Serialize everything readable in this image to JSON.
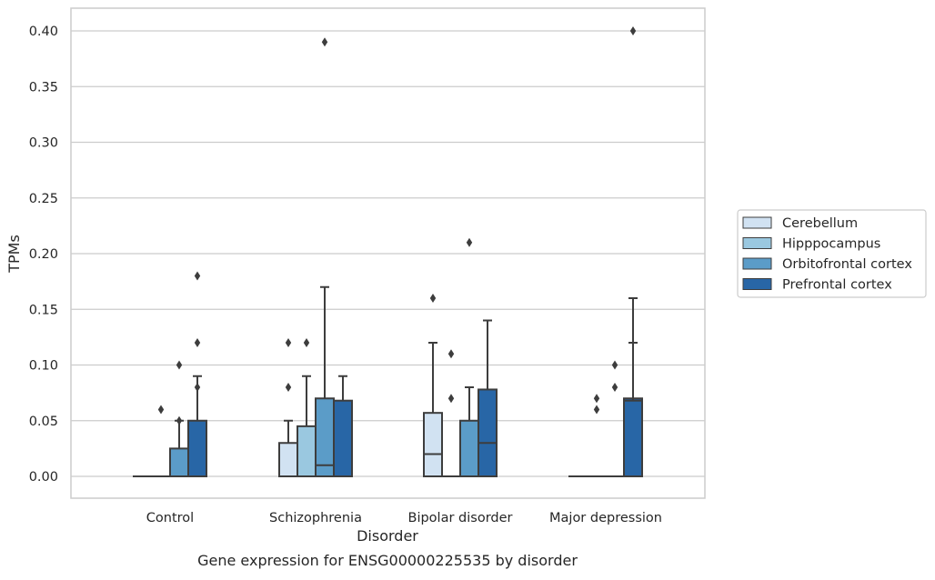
{
  "chart_data": {
    "type": "boxplot",
    "title": "Gene expression for ENSG00000225535 by disorder",
    "xlabel": "Disorder",
    "ylabel": "TPMs",
    "ylim": [
      -0.019,
      0.42
    ],
    "yticks": [
      0.0,
      0.05,
      0.1,
      0.15,
      0.2,
      0.25,
      0.3,
      0.35,
      0.4
    ],
    "ytick_labels": [
      "0.00",
      "0.05",
      "0.10",
      "0.15",
      "0.20",
      "0.25",
      "0.30",
      "0.35",
      "0.40"
    ],
    "grid": "horizontal",
    "legend_position": "right",
    "categories": [
      "Control",
      "Schizophrenia",
      "Bipolar disorder",
      "Major depression"
    ],
    "series": [
      {
        "name": "Cerebellum",
        "color": "#d1e2f2",
        "boxes": [
          {
            "q1": 0.0,
            "median": 0.0,
            "q3": 0.0,
            "whislo": 0.0,
            "whishi": 0.0,
            "fliers": []
          },
          {
            "q1": 0.0,
            "median": 0.0,
            "q3": 0.03,
            "whislo": 0.0,
            "whishi": 0.05,
            "fliers": [
              0.08,
              0.12
            ]
          },
          {
            "q1": 0.0,
            "median": 0.02,
            "q3": 0.057,
            "whislo": 0.0,
            "whishi": 0.12,
            "fliers": [
              0.16
            ]
          },
          {
            "q1": 0.0,
            "median": 0.0,
            "q3": 0.0,
            "whislo": 0.0,
            "whishi": 0.0,
            "fliers": []
          }
        ]
      },
      {
        "name": "Hipppocampus",
        "color": "#9ac8e0",
        "boxes": [
          {
            "q1": 0.0,
            "median": 0.0,
            "q3": 0.0,
            "whislo": 0.0,
            "whishi": 0.0,
            "fliers": [
              0.06
            ]
          },
          {
            "q1": 0.0,
            "median": 0.0,
            "q3": 0.045,
            "whislo": 0.0,
            "whishi": 0.09,
            "fliers": [
              0.12
            ]
          },
          {
            "q1": 0.0,
            "median": 0.0,
            "q3": 0.0,
            "whislo": 0.0,
            "whishi": 0.0,
            "fliers": [
              0.07,
              0.11
            ]
          },
          {
            "q1": 0.0,
            "median": 0.0,
            "q3": 0.0,
            "whislo": 0.0,
            "whishi": 0.0,
            "fliers": [
              0.06,
              0.07
            ]
          }
        ]
      },
      {
        "name": "Orbitofrontal cortex",
        "color": "#5b9cc8",
        "boxes": [
          {
            "q1": 0.0,
            "median": 0.0,
            "q3": 0.025,
            "whislo": 0.0,
            "whishi": 0.05,
            "fliers": [
              0.05,
              0.1
            ]
          },
          {
            "q1": 0.0,
            "median": 0.01,
            "q3": 0.07,
            "whislo": 0.0,
            "whishi": 0.17,
            "fliers": [
              0.39
            ]
          },
          {
            "q1": 0.0,
            "median": 0.0,
            "q3": 0.05,
            "whislo": 0.0,
            "whishi": 0.08,
            "fliers": [
              0.21
            ]
          },
          {
            "q1": 0.0,
            "median": 0.0,
            "q3": 0.0,
            "whislo": 0.0,
            "whishi": 0.0,
            "fliers": [
              0.08,
              0.1
            ]
          }
        ]
      },
      {
        "name": "Prefrontal cortex",
        "color": "#2866a6",
        "boxes": [
          {
            "q1": 0.0,
            "median": 0.0,
            "q3": 0.05,
            "whislo": 0.0,
            "whishi": 0.09,
            "fliers": [
              0.08,
              0.12,
              0.18
            ]
          },
          {
            "q1": 0.0,
            "median": 0.0,
            "q3": 0.068,
            "whislo": 0.0,
            "whishi": 0.09,
            "fliers": []
          },
          {
            "q1": 0.0,
            "median": 0.03,
            "q3": 0.078,
            "whislo": 0.0,
            "whishi": 0.14,
            "fliers": []
          },
          {
            "q1": 0.0,
            "median": 0.0,
            "q3": 0.07,
            "whislo": 0.0,
            "whishi": 0.16,
            "fliers": [
              0.4
            ]
          }
        ]
      }
    ]
  },
  "extra_boxes": [
    {
      "category": 3,
      "series": 3,
      "q1": 0.0,
      "median": 0.0,
      "q3": 0.068,
      "whislo": 0.0,
      "whishi": 0.12,
      "fliers": []
    }
  ],
  "colors": {
    "grid": "#cccccc",
    "frame": "#cccccc",
    "box_edge": "#3d3d3d",
    "text": "#262626"
  }
}
